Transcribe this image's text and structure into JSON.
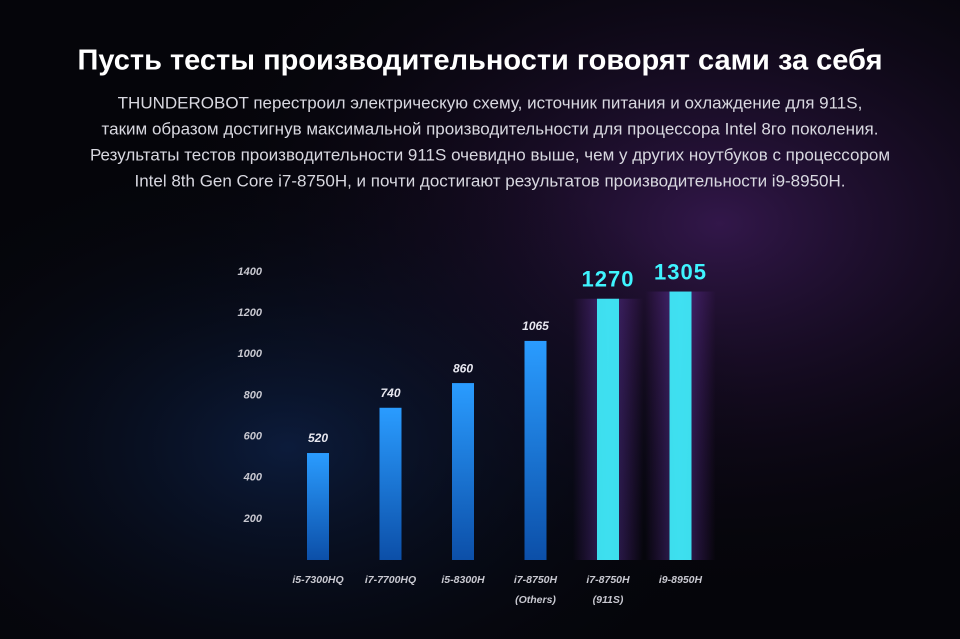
{
  "chart_data": {
    "type": "bar",
    "title": "Пусть тесты производительности говорят сами за себя",
    "description": [
      "THUNDEROBOT перестроил электрическую схему, источник питания и охлаждение для 911S,",
      "таким образом достигнув максимальной производительности для процессора Intel 8го поколения.",
      "Результаты тестов производительности 911S очевидно выше, чем у других ноутбуков с процессором",
      "Intel 8th Gen Core i7-8750H, и почти достигают результатов производительности i9-8950H."
    ],
    "categories": [
      [
        "i5-7300HQ"
      ],
      [
        "i7-7700HQ"
      ],
      [
        "i5-8300H"
      ],
      [
        "i7-8750H",
        "(Others)"
      ],
      [
        "i7-8750H",
        "(911S)"
      ],
      [
        "i9-8950H"
      ]
    ],
    "values": [
      520,
      740,
      860,
      1065,
      1270,
      1305
    ],
    "colors": [
      "#1a86e8",
      "#1a86e8",
      "#1a86e8",
      "#1a86e8",
      "#3ff4ff",
      "#3ff4ff"
    ],
    "ylim": [
      0,
      1400
    ],
    "yticks": [
      200,
      400,
      600,
      800,
      1000,
      1200,
      1400
    ],
    "grid": false
  }
}
